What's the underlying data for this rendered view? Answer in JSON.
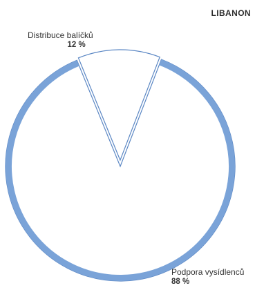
{
  "chart_data": {
    "type": "pie",
    "title": "LIBANON",
    "slices": [
      {
        "label": "Podpora vysídlenců",
        "value": 88,
        "value_label": "88 %",
        "color": "#7aa3d8"
      },
      {
        "label": "Distribuce balíčků",
        "value": 12,
        "value_label": "12 %",
        "color": "#ffffff"
      }
    ],
    "legend": "none",
    "outline_color": "#5b87c4"
  }
}
